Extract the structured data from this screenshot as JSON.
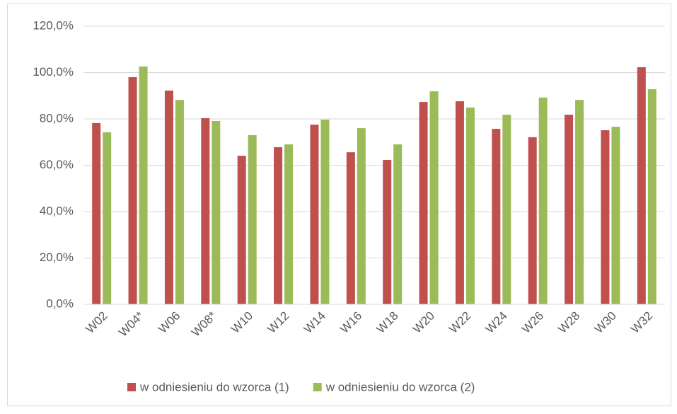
{
  "chart_data": {
    "type": "bar",
    "categories": [
      "W02",
      "W04*",
      "W06",
      "W08*",
      "W10",
      "W12",
      "W14",
      "W16",
      "W18",
      "W20",
      "W22",
      "W24",
      "W26",
      "W28",
      "W30",
      "W32"
    ],
    "series": [
      {
        "name": "w odniesieniu do wzorca (1)",
        "color": "#c0504d",
        "values": [
          78.2,
          98.0,
          92.2,
          80.3,
          64.1,
          67.8,
          77.5,
          65.6,
          62.3,
          87.3,
          87.6,
          75.7,
          72.1,
          81.8,
          75.1,
          102.3
        ]
      },
      {
        "name": "w odniesieniu do wzorca (2)",
        "color": "#9bbb59",
        "values": [
          74.2,
          102.6,
          88.2,
          79.1,
          73.0,
          69.0,
          79.7,
          76.0,
          69.0,
          91.9,
          84.9,
          81.8,
          89.2,
          88.2,
          76.6,
          92.8
        ]
      }
    ],
    "ylim": [
      0,
      120
    ],
    "yticks": [
      {
        "value": 0,
        "label": "0,0%"
      },
      {
        "value": 20,
        "label": "20,0%"
      },
      {
        "value": 40,
        "label": "40,0%"
      },
      {
        "value": 60,
        "label": "60,0%"
      },
      {
        "value": 80,
        "label": "80,0%"
      },
      {
        "value": 100,
        "label": "100,0%"
      },
      {
        "value": 120,
        "label": "120,0%"
      }
    ],
    "grid": true,
    "legend": "bottom"
  }
}
